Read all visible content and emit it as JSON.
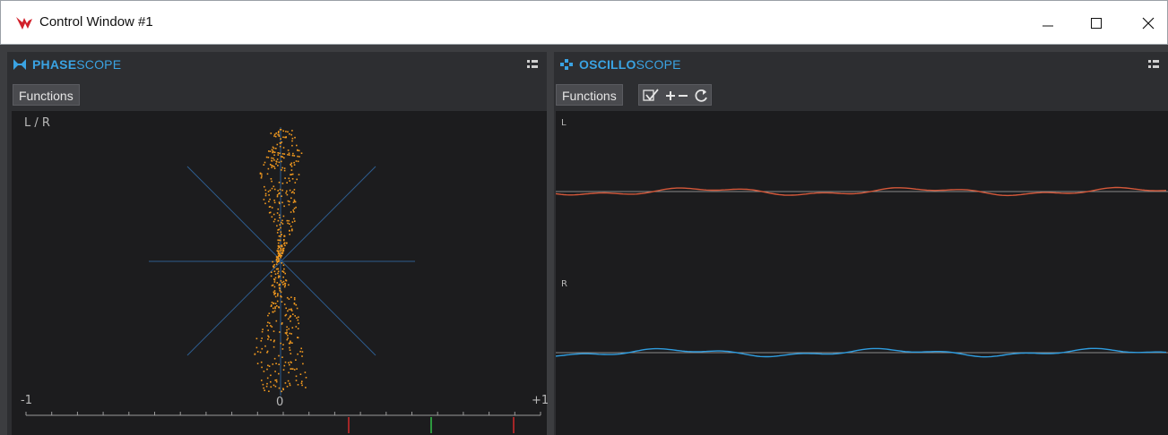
{
  "window": {
    "title": "Control Window #1"
  },
  "phasescope": {
    "title_bold": "PHASE",
    "title_rest": "SCOPE",
    "functions_label": "Functions",
    "corner_label": "L / R",
    "scale": {
      "left": "-1",
      "center": "0",
      "right": "+1"
    }
  },
  "oscilloscope": {
    "title_bold": "OSCILLO",
    "title_rest": "SCOPE",
    "functions_label": "Functions",
    "channel_left": "L",
    "channel_right": "R",
    "colors": {
      "left_channel": "#d4583a",
      "right_channel": "#2f9de0"
    }
  },
  "colors": {
    "accent": "#3aa3e3",
    "phase_dots": "#f39a1f"
  }
}
